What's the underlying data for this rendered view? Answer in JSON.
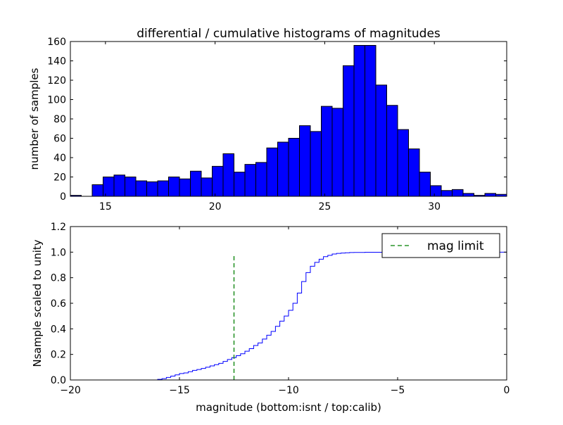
{
  "chart_data": [
    {
      "type": "bar",
      "title": "differential / cumulative histograms of magnitudes",
      "xlabel": "",
      "ylabel": "number of samples",
      "xlim": [
        13.4,
        33.3
      ],
      "ylim": [
        0,
        160
      ],
      "xticks": [
        "15",
        "20",
        "25",
        "30"
      ],
      "xtick_values": [
        15,
        20,
        25,
        30
      ],
      "yticks": [
        "0",
        "20",
        "40",
        "60",
        "80",
        "100",
        "120",
        "140",
        "160"
      ],
      "ytick_values": [
        0,
        20,
        40,
        60,
        80,
        100,
        120,
        140,
        160
      ],
      "grid": false,
      "bar_color": "#0000ff",
      "bin_start": 13.4,
      "bin_width": 0.4975,
      "values": [
        1,
        0,
        12,
        20,
        22,
        20,
        16,
        15,
        16,
        20,
        18,
        26,
        19,
        31,
        44,
        25,
        33,
        35,
        50,
        56,
        60,
        73,
        67,
        93,
        91,
        135,
        156,
        156,
        115,
        94,
        69,
        49,
        25,
        11,
        6,
        7,
        3,
        1,
        3,
        2
      ]
    },
    {
      "type": "line",
      "title": "",
      "xlabel": "magnitude (bottom:isnt / top:calib)",
      "ylabel": "Nsample scaled to unity",
      "xlim": [
        -20,
        0
      ],
      "ylim": [
        0,
        1.2
      ],
      "xticks": [
        "−20",
        "−15",
        "−10",
        "−5",
        "0"
      ],
      "xtick_values": [
        -20,
        -15,
        -10,
        -5,
        0
      ],
      "yticks": [
        "0.0",
        "0.2",
        "0.4",
        "0.6",
        "0.8",
        "1.0",
        "1.2"
      ],
      "ytick_values": [
        0,
        0.2,
        0.4,
        0.6,
        0.8,
        1.0,
        1.2
      ],
      "grid": false,
      "legend_position": "top-right",
      "series": [
        {
          "name": "",
          "style": "step",
          "color": "#0000ff",
          "x": [
            -20,
            -16.0,
            -15.8,
            -15.6,
            -15.4,
            -15.2,
            -15.0,
            -14.8,
            -14.6,
            -14.4,
            -14.2,
            -14.0,
            -13.8,
            -13.6,
            -13.4,
            -13.2,
            -13.0,
            -12.8,
            -12.6,
            -12.4,
            -12.2,
            -12.0,
            -11.8,
            -11.6,
            -11.4,
            -11.2,
            -11.0,
            -10.8,
            -10.6,
            -10.4,
            -10.2,
            -10.0,
            -9.8,
            -9.6,
            -9.4,
            -9.2,
            -9.0,
            -8.8,
            -8.6,
            -8.4,
            -8.2,
            -8.0,
            -7.8,
            -7.6,
            -7.4,
            -7.2,
            -7.0,
            -6.5,
            -6.0,
            -5.5,
            -5.0,
            -3.0,
            -1.0,
            -0.1,
            0
          ],
          "y": [
            0.0,
            0.005,
            0.01,
            0.02,
            0.03,
            0.04,
            0.05,
            0.055,
            0.065,
            0.075,
            0.082,
            0.09,
            0.1,
            0.11,
            0.12,
            0.13,
            0.145,
            0.16,
            0.175,
            0.19,
            0.205,
            0.225,
            0.245,
            0.27,
            0.29,
            0.32,
            0.35,
            0.38,
            0.42,
            0.46,
            0.5,
            0.545,
            0.6,
            0.68,
            0.77,
            0.84,
            0.89,
            0.92,
            0.945,
            0.965,
            0.975,
            0.985,
            0.99,
            0.993,
            0.995,
            0.997,
            0.998,
            0.999,
            0.999,
            1.0,
            1.0,
            1.0,
            1.0,
            1.0,
            0.0
          ]
        },
        {
          "name": "mag limit",
          "style": "dashed",
          "color": "#008000",
          "x": [
            -12.5,
            -12.5
          ],
          "y": [
            0,
            0.97
          ]
        }
      ],
      "legend": [
        "mag limit"
      ]
    }
  ]
}
